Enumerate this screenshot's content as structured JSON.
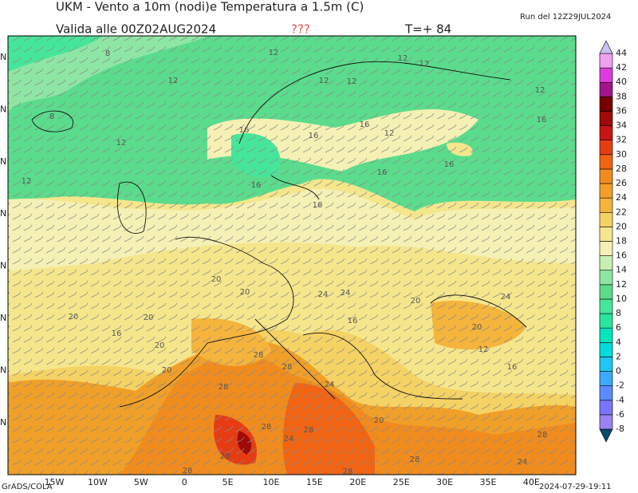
{
  "header": {
    "title": "UKM - Vento a 10m (nodi)e Temperatura a 1.5m (C)",
    "valid": "Valida alle 00Z02AUG2024",
    "flag": "???",
    "step": "T=+ 84",
    "run": "Run del 12Z29JUL2024"
  },
  "colorbar": {
    "levels": [
      -8,
      -6,
      -4,
      -2,
      0,
      2,
      4,
      6,
      8,
      10,
      12,
      14,
      16,
      18,
      20,
      22,
      24,
      26,
      28,
      30,
      32,
      34,
      36,
      38,
      40,
      42,
      44
    ],
    "colors": [
      "#0a4a6e",
      "#9a82f0",
      "#7a74ff",
      "#5a8cff",
      "#3caaff",
      "#1ec8f0",
      "#00dcdc",
      "#00e6be",
      "#28e6a0",
      "#46e69a",
      "#5adc8c",
      "#8ee6a4",
      "#c8f0b4",
      "#f5f0b4",
      "#f5e68c",
      "#f5d264",
      "#f5b43c",
      "#f0a028",
      "#f08c1e",
      "#f06414",
      "#e63c14",
      "#c81414",
      "#a00a0a",
      "#780000",
      "#a0148c",
      "#dc3cdc",
      "#f0a0f0",
      "#c8c0f0"
    ]
  },
  "lon_labels": [
    "15W",
    "10W",
    "5W",
    "0",
    "5E",
    "10E",
    "15E",
    "20E",
    "25E",
    "30E",
    "35E",
    "40E"
  ],
  "lat_labels": [
    "N",
    "N",
    "N",
    "N",
    "N",
    "N",
    "N",
    "N"
  ],
  "map_labels": [
    "8",
    "12",
    "12",
    "12",
    "12",
    "8",
    "12",
    "12",
    "12",
    "12",
    "12",
    "16",
    "16",
    "12",
    "16",
    "16",
    "16",
    "16",
    "16",
    "16",
    "20",
    "20",
    "20",
    "20",
    "24",
    "24",
    "28",
    "28",
    "28",
    "24",
    "20",
    "20",
    "16",
    "16",
    "20",
    "24",
    "20",
    "16",
    "28",
    "28",
    "28",
    "28",
    "24",
    "28",
    "28",
    "28",
    "24",
    "20",
    "12"
  ],
  "footer": {
    "left": "GrADS/COLA",
    "right": "2024-07-29-19:11"
  }
}
